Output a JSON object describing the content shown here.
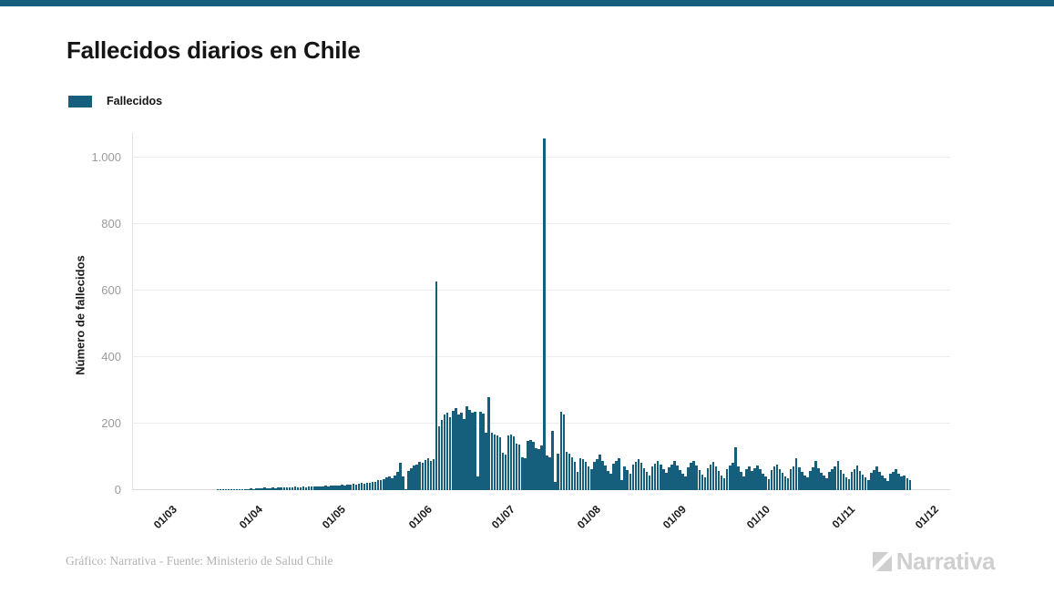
{
  "page": {
    "title": "Fallecidos diarios en Chile",
    "top_bar_color": "#155F7D"
  },
  "legend": {
    "label": "Fallecidos",
    "swatch_color": "#155F7D"
  },
  "footer": {
    "credit": "Gráfico: Narrativa - Fuente: Ministerio de Salud Chile",
    "logo_text": "Narrativa",
    "logo_color": "#cfcfcf"
  },
  "chart_data": {
    "type": "bar",
    "title": "Fallecidos diarios en Chile",
    "series_name": "Fallecidos",
    "xlabel": "",
    "ylabel": "Número de fallecidos",
    "bar_color": "#155F7D",
    "grid": "horizontal",
    "legend_position": "top-left",
    "ylim": [
      0,
      1100
    ],
    "y_ticks": [
      0,
      200,
      400,
      600,
      800,
      1000
    ],
    "y_tick_labels": [
      "0",
      "200",
      "400",
      "600",
      "800",
      "1.000"
    ],
    "x_tick_labels": [
      "01/03",
      "01/04",
      "01/05",
      "01/06",
      "01/07",
      "01/08",
      "01/09",
      "01/10",
      "01/11",
      "01/12"
    ],
    "x_tick_day_offsets": [
      0,
      31,
      61,
      92,
      122,
      153,
      184,
      214,
      245,
      275
    ],
    "peaks": [
      {
        "date": "09/06",
        "value": 627
      },
      {
        "date": "18/07",
        "value": 1057
      }
    ],
    "months": [
      {
        "label": "03",
        "first_day": 22,
        "values": [
          1,
          2,
          1,
          2,
          2,
          3,
          2,
          3,
          4,
          3
        ]
      },
      {
        "label": "04",
        "first_day": 1,
        "values": [
          4,
          3,
          5,
          4,
          5,
          6,
          5,
          7,
          6,
          5,
          8,
          6,
          7,
          9,
          7,
          8,
          9,
          7,
          10,
          8,
          9,
          11,
          9,
          10,
          12,
          10,
          11,
          12,
          11,
          13
        ]
      },
      {
        "label": "05",
        "first_day": 1,
        "values": [
          12,
          14,
          13,
          15,
          14,
          16,
          15,
          17,
          16,
          18,
          17,
          19,
          21,
          20,
          23,
          22,
          26,
          25,
          29,
          31,
          34,
          38,
          42,
          36,
          45,
          55,
          82,
          40,
          2,
          58,
          66
        ]
      },
      {
        "label": "06",
        "first_day": 1,
        "values": [
          73,
          78,
          85,
          81,
          90,
          96,
          88,
          94,
          627,
          192,
          210,
          228,
          232,
          220,
          238,
          246,
          228,
          233,
          214,
          253,
          241,
          232,
          236,
          42,
          235,
          231,
          172,
          279,
          172,
          167
        ]
      },
      {
        "label": "07",
        "first_day": 1,
        "values": [
          164,
          158,
          112,
          108,
          165,
          168,
          161,
          141,
          137,
          98,
          95,
          148,
          151,
          144,
          127,
          122,
          135,
          1057,
          104,
          99,
          177,
          25,
          110,
          236,
          228,
          116,
          110,
          98,
          86,
          54,
          95
        ]
      },
      {
        "label": "08",
        "first_day": 1,
        "values": [
          92,
          86,
          70,
          64,
          84,
          94,
          108,
          89,
          74,
          58,
          50,
          80,
          88,
          97,
          30,
          72,
          61,
          48,
          76,
          84,
          93,
          81,
          67,
          54,
          44,
          71,
          79,
          89,
          77,
          63,
          51
        ]
      },
      {
        "label": "09",
        "first_day": 1,
        "values": [
          68,
          78,
          87,
          74,
          61,
          48,
          40,
          69,
          81,
          89,
          75,
          60,
          46,
          38,
          66,
          76,
          85,
          71,
          57,
          44,
          36,
          63,
          73,
          83,
          128,
          70,
          55,
          42,
          62,
          71
        ]
      },
      {
        "label": "10",
        "first_day": 1,
        "values": [
          58,
          66,
          74,
          62,
          50,
          41,
          34,
          60,
          70,
          78,
          64,
          52,
          42,
          36,
          62,
          72,
          96,
          68,
          54,
          44,
          38,
          58,
          68,
          88,
          66,
          52,
          43,
          35,
          56,
          64,
          72
        ]
      },
      {
        "label": "11",
        "first_day": 1,
        "values": [
          88,
          60,
          48,
          38,
          32,
          54,
          62,
          75,
          58,
          46,
          38,
          30,
          52,
          60,
          70,
          55,
          44,
          35,
          28,
          48,
          56,
          64,
          50,
          40,
          45,
          35,
          30
        ]
      }
    ]
  }
}
